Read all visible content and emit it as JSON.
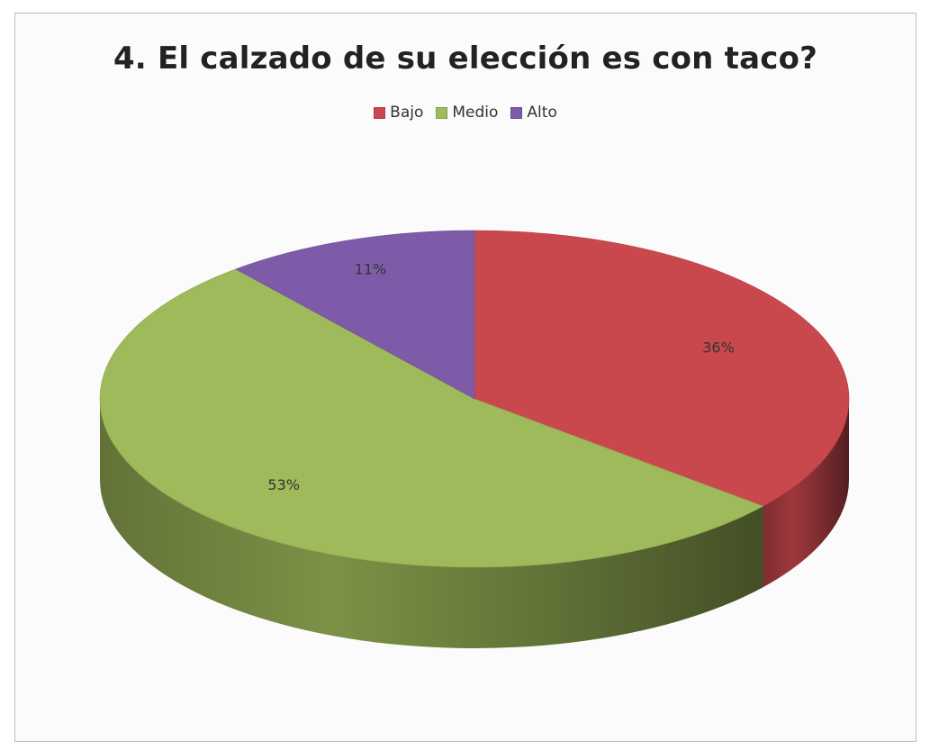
{
  "chart_data": {
    "type": "pie",
    "title": "4.  El calzado de su elección es con taco?",
    "legend_position": "top",
    "three_d": true,
    "categories": [
      "Bajo",
      "Medio",
      "Alto"
    ],
    "values": [
      36,
      53,
      11
    ],
    "labels": [
      "36%",
      "53%",
      "11%"
    ],
    "colors": [
      "#c9484e",
      "#9fba5a",
      "#7e5ba8"
    ]
  }
}
